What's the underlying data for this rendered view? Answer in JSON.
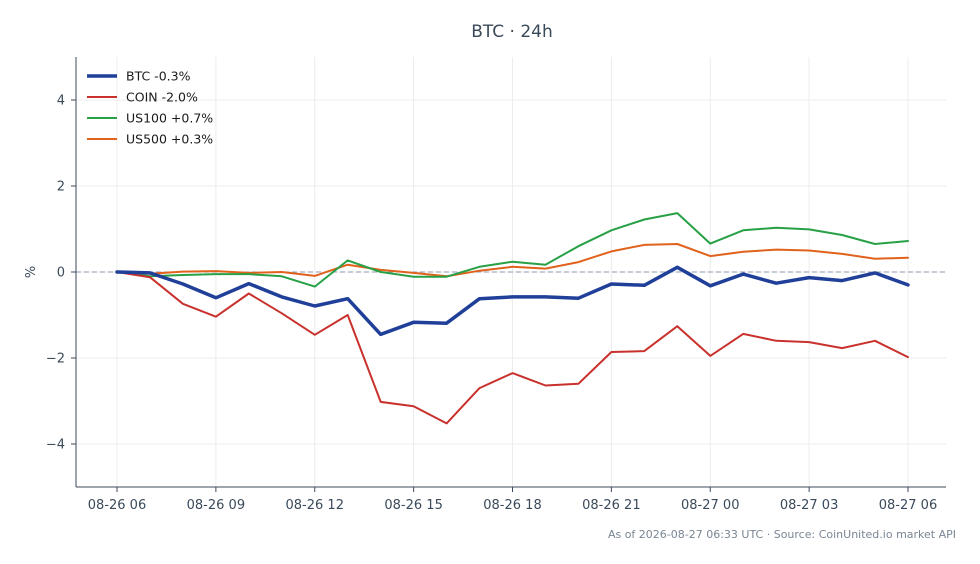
{
  "chart_data": {
    "type": "line",
    "title": "BTC · 24h",
    "ylabel": "%",
    "xlabel": "",
    "ylim": [
      -5,
      5
    ],
    "yticks": [
      -4,
      -2,
      0,
      2,
      4
    ],
    "ytick_labels": [
      "−4",
      "−2",
      "0",
      "2",
      "4"
    ],
    "x_hours": [
      0,
      1,
      2,
      3,
      4,
      5,
      6,
      7,
      8,
      9,
      10,
      11,
      12,
      13,
      14,
      15,
      16,
      17,
      18,
      19,
      20,
      21,
      22,
      23,
      24
    ],
    "xticks": [
      0,
      3,
      6,
      9,
      12,
      15,
      18,
      21,
      24
    ],
    "xtick_labels": [
      "08-26 06",
      "08-26 09",
      "08-26 12",
      "08-26 15",
      "08-26 18",
      "08-26 21",
      "08-27 00",
      "08-27 03",
      "08-27 06"
    ],
    "grid": true,
    "zero_line": true,
    "legend_position": "top-left",
    "series": [
      {
        "name": "BTC -0.3%",
        "color": "#1f3f99",
        "bold": true,
        "values": [
          0.0,
          -0.02,
          -0.28,
          -0.6,
          -0.27,
          -0.58,
          -0.79,
          -0.62,
          -1.45,
          -1.17,
          -1.19,
          -0.62,
          -0.58,
          -0.58,
          -0.61,
          -0.28,
          -0.31,
          0.11,
          -0.32,
          -0.05,
          -0.26,
          -0.13,
          -0.2,
          -0.02,
          -0.3
        ]
      },
      {
        "name": "COIN -2.0%",
        "color": "#c9312c",
        "bold": false,
        "values": [
          0.0,
          -0.12,
          -0.74,
          -1.04,
          -0.5,
          -0.96,
          -1.46,
          -1.0,
          -3.02,
          -3.12,
          -3.52,
          -2.7,
          -2.35,
          -2.64,
          -2.6,
          -1.86,
          -1.84,
          -1.26,
          -1.95,
          -1.44,
          -1.6,
          -1.63,
          -1.77,
          -1.6,
          -1.98
        ]
      },
      {
        "name": "US100 +0.7%",
        "color": "#27a046",
        "bold": false,
        "values": [
          0.0,
          -0.1,
          -0.07,
          -0.05,
          -0.05,
          -0.1,
          -0.34,
          0.27,
          0.0,
          -0.11,
          -0.11,
          0.12,
          0.24,
          0.17,
          0.6,
          0.97,
          1.22,
          1.37,
          0.66,
          0.97,
          1.03,
          0.99,
          0.86,
          0.65,
          0.72
        ]
      },
      {
        "name": "US500 +0.3%",
        "color": "#e0621c",
        "bold": false,
        "values": [
          0.0,
          -0.04,
          0.01,
          0.02,
          -0.02,
          0.0,
          -0.09,
          0.17,
          0.05,
          -0.02,
          -0.1,
          0.03,
          0.12,
          0.08,
          0.23,
          0.48,
          0.63,
          0.65,
          0.37,
          0.47,
          0.52,
          0.5,
          0.42,
          0.31,
          0.33
        ]
      }
    ],
    "footnote": "As of 2026-08-27 06:33 UTC · Source: CoinUnited.io market API"
  }
}
